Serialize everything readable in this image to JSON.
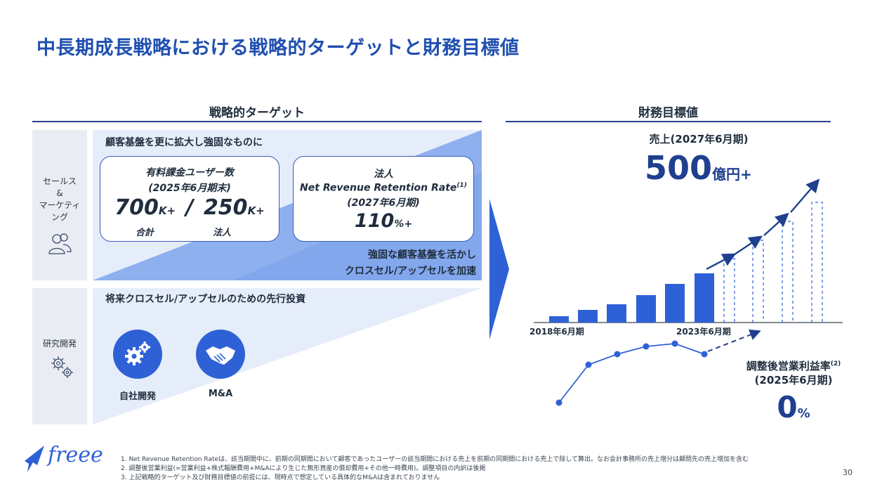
{
  "title": "中長期成長戦略における戦略的ターゲットと財務目標値",
  "strategic": {
    "heading": "戦略的ターゲット",
    "sales_label": "セールス\n&\nマーケティ\nング",
    "rnd_label": "研究開発",
    "top_banner": "顧客基盤を更に拡大し強固なものに",
    "users_box": {
      "title": "有料課金ユーザー数",
      "period": "(2025年6月期末)",
      "total_value": "700",
      "total_unit": "K+",
      "slash": "/",
      "corp_value": "250",
      "corp_unit": "K+",
      "total_label": "合計",
      "corp_label": "法人"
    },
    "nrr_box": {
      "line1": "法人",
      "line2": "Net Revenue Retention Rate",
      "note": "(1)",
      "period": "(2027年6月期)",
      "value": "110",
      "unit": "%+"
    },
    "crosssell_line1": "強固な顧客基盤を活かし",
    "crosssell_line2": "クロスセル/アップセルを加速",
    "invest_banner": "将来クロスセル/アップセルのための先行投資",
    "in_house_label": "自社開発",
    "ma_label": "M&A"
  },
  "financial": {
    "heading": "財務目標値",
    "revenue_label": "売上(2027年6月期)",
    "revenue_value": "500",
    "revenue_unit": "億円+",
    "axis_start": "2018年6月期",
    "axis_mid": "2023年6月期",
    "margin_label": "調整後営業利益率",
    "margin_note": "(2)",
    "margin_period": "(2025年6月期)",
    "margin_value": "0",
    "margin_unit": "%"
  },
  "footnotes": [
    "1. Net Revenue Retention Rateは、該当期間中に、前期の同期間において顧客であったユーザーの該当期間における売上を前期の同期間における売上で除して算出。なお会計事務所の売上増分は顧問先の売上増加を含む",
    "2. 調整後営業利益(=営業利益+株式報酬費用+M&Aにより生じた無形資産の償却費用+その他一時費用)。調整項目の内訳は後掲",
    "3. 上記戦略的ターゲット及び財務目標値の前提には、現時点で想定している具体的なM&Aは含まれておりません"
  ],
  "brand": "freee",
  "page_number": "30",
  "colors": {
    "primary": "#2f61d6",
    "navy": "#1f4fb0",
    "light_blue": "#cfdcf6"
  }
}
